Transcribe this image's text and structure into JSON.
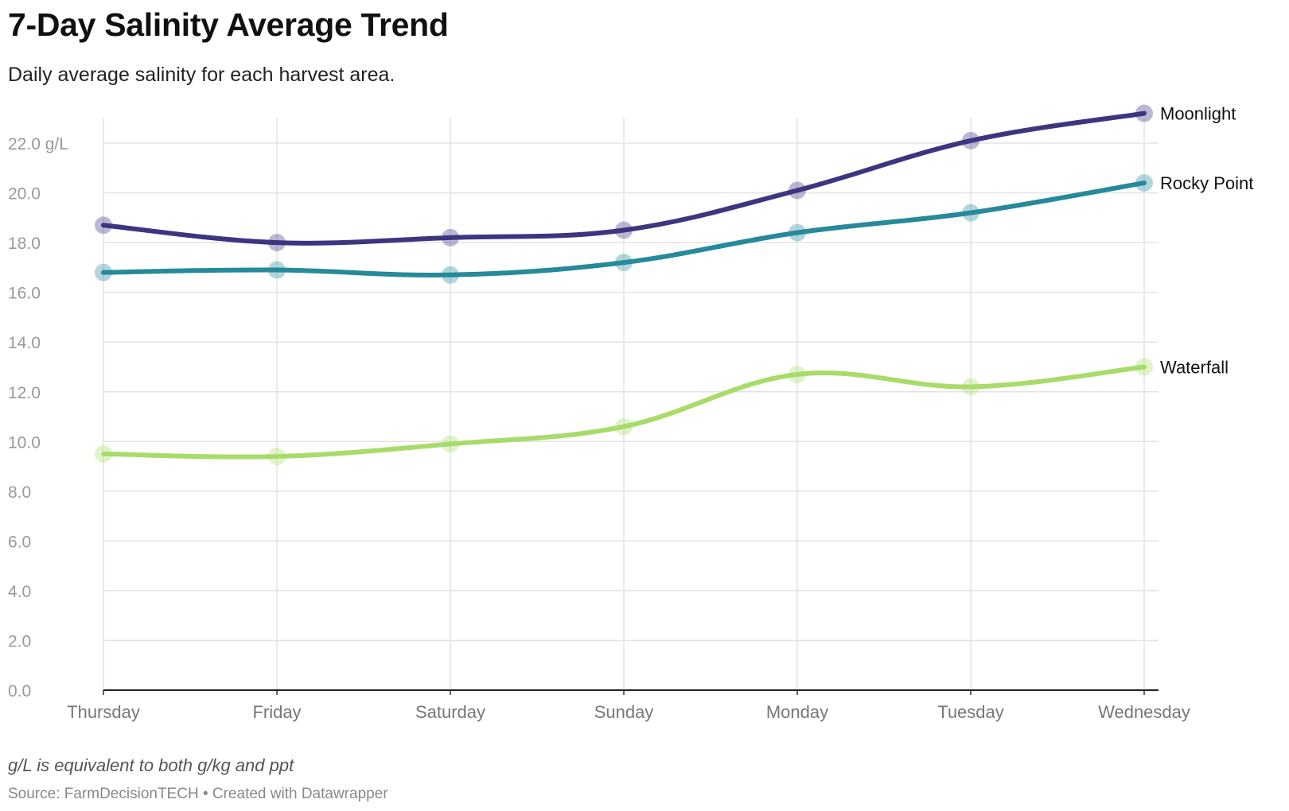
{
  "header": {
    "title": "7-Day Salinity Average Trend",
    "subtitle": "Daily average salinity for each harvest area."
  },
  "footer": {
    "notes": "g/L is equivalent to both g/kg and ppt",
    "source": "Source: FarmDecisionTECH • Created with Datawrapper"
  },
  "chart_data": {
    "type": "line",
    "title": "7-Day Salinity Average Trend",
    "subtitle": "Daily average salinity for each harvest area.",
    "xlabel": "",
    "ylabel": "",
    "categories": [
      "Thursday",
      "Friday",
      "Saturday",
      "Sunday",
      "Monday",
      "Tuesday",
      "Wednesday"
    ],
    "y_ticks": [
      0,
      2,
      4,
      6,
      8,
      10,
      12,
      14,
      16,
      18,
      20,
      22
    ],
    "y_tick_labels": [
      "0.0",
      "2.0",
      "4.0",
      "6.0",
      "8.0",
      "10.0",
      "12.0",
      "14.0",
      "16.0",
      "18.0",
      "20.0",
      "22.0 g/L"
    ],
    "ylim": [
      0,
      22.5
    ],
    "grid": true,
    "legend": "direct labels at line ends",
    "series": [
      {
        "name": "Moonlight",
        "color": "#3d3580",
        "values": [
          18.7,
          18.0,
          18.2,
          18.5,
          20.1,
          22.1,
          23.2
        ]
      },
      {
        "name": "Rocky Point",
        "color": "#268a9a",
        "values": [
          16.8,
          16.9,
          16.7,
          17.2,
          18.4,
          19.2,
          20.4
        ]
      },
      {
        "name": "Waterfall",
        "color": "#a8dc6a",
        "values": [
          9.5,
          9.4,
          9.9,
          10.6,
          12.7,
          12.2,
          13.0
        ]
      }
    ]
  }
}
